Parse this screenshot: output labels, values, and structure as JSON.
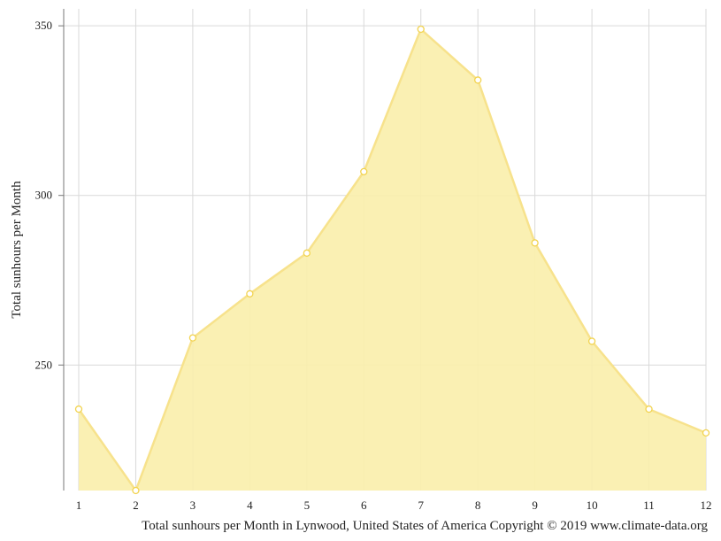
{
  "chart_data": {
    "type": "area",
    "x": [
      "1",
      "2",
      "3",
      "4",
      "5",
      "6",
      "7",
      "8",
      "9",
      "10",
      "11",
      "12"
    ],
    "values": [
      237,
      213,
      258,
      271,
      283,
      307,
      349,
      334,
      286,
      257,
      237,
      230
    ],
    "ylabel": "Total sunhours per Month",
    "caption": "Total sunhours per Month in Lynwood, United States of America Copyright © 2019 www.climate-data.org",
    "yticks": [
      250,
      300,
      350
    ],
    "ylim": [
      213,
      355
    ],
    "grid": true,
    "legend": "none",
    "colors": {
      "fill": "#faeeab",
      "line": "#f7e28c",
      "marker_stroke": "#f2d34f",
      "grid": "#d9d9d9",
      "axis": "#777777"
    }
  }
}
